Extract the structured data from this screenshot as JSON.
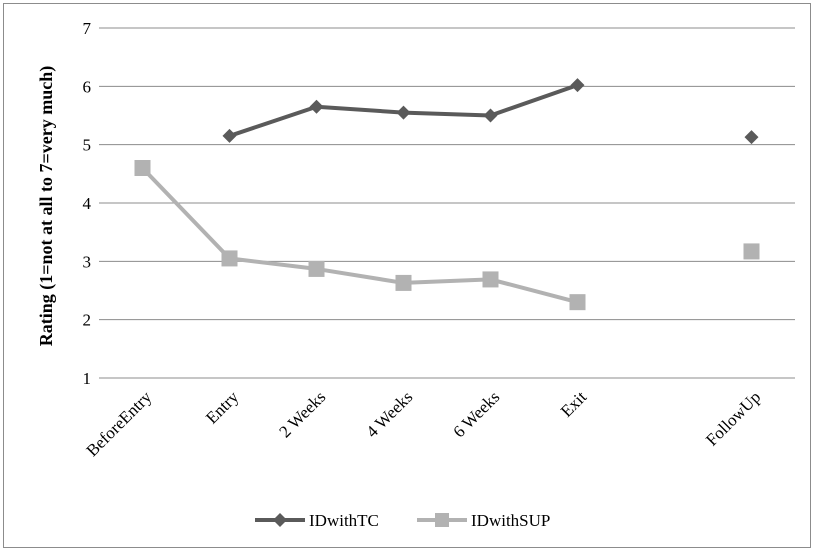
{
  "chart_data": {
    "type": "line",
    "title": "",
    "xlabel": "",
    "ylabel": "Rating (1=not at all to 7=very much)",
    "ylim": [
      1,
      7
    ],
    "yticks": [
      1,
      2,
      3,
      4,
      5,
      6,
      7
    ],
    "categories": [
      "BeforeEntry",
      "Entry",
      "2 Weeks",
      "4 Weeks",
      "6 Weeks",
      "Exit",
      "",
      "FollowUp"
    ],
    "grid": "horizontal",
    "legend_position": "bottom",
    "series": [
      {
        "name": "IDwithTC",
        "color": "#5a5a5a",
        "marker": "diamond",
        "values": [
          null,
          5.15,
          5.65,
          5.55,
          5.5,
          6.02,
          null,
          5.13
        ]
      },
      {
        "name": "IDwithSUP",
        "color": "#b2b2b2",
        "marker": "square",
        "values": [
          4.6,
          3.05,
          2.87,
          2.63,
          2.69,
          2.3,
          null,
          3.17
        ]
      }
    ]
  }
}
